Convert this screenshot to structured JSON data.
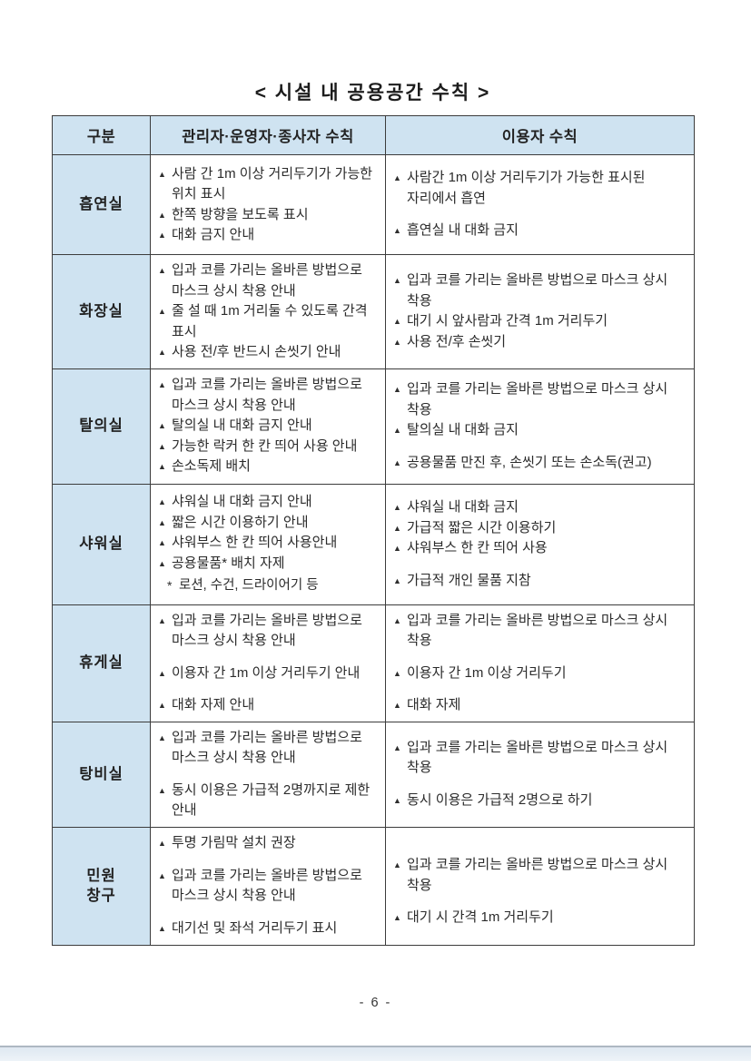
{
  "title": "< 시설 내 공용공간 수칙 >",
  "bullet_icon": "▲",
  "table": {
    "headers": [
      "구분",
      "관리자·운영자·종사자 수칙",
      "이용자 수칙"
    ],
    "rows": [
      {
        "category": "흡연실",
        "manager": [
          {
            "text": "사람 간 1m 이상 거리두기가 가능한 위치 표시"
          },
          {
            "text": "한쪽 방향을 보도록 표시"
          },
          {
            "text": "대화 금지 안내"
          }
        ],
        "user": [
          {
            "text": "사람간 1m 이상 거리두기가 가능한 표시된 자리에서 흡연"
          },
          {
            "text": "흡연실 내 대화 금지",
            "gap_before": true
          }
        ]
      },
      {
        "category": "화장실",
        "manager": [
          {
            "text": "입과 코를 가리는 올바른 방법으로 마스크 상시 착용 안내"
          },
          {
            "text": "줄 설 때 1m 거리둘 수 있도록 간격 표시"
          },
          {
            "text": "사용 전/후 반드시 손씻기 안내"
          }
        ],
        "user": [
          {
            "text": "입과 코를 가리는 올바른 방법으로 마스크 상시 착용"
          },
          {
            "text": "대기 시 앞사람과 간격 1m 거리두기"
          },
          {
            "text": "사용 전/후 손씻기"
          }
        ]
      },
      {
        "category": "탈의실",
        "manager": [
          {
            "text": "입과 코를 가리는 올바른 방법으로 마스크 상시 착용 안내"
          },
          {
            "text": "탈의실 내 대화 금지 안내"
          },
          {
            "text": "가능한 락커 한 칸 띄어 사용 안내"
          },
          {
            "text": "손소독제 배치"
          }
        ],
        "user": [
          {
            "text": "입과 코를 가리는 올바른 방법으로 마스크 상시 착용"
          },
          {
            "text": "탈의실 내 대화 금지"
          },
          {
            "text": "공용물품 만진 후, 손씻기 또는 손소독(권고)",
            "gap_before": true
          }
        ]
      },
      {
        "category": "샤워실",
        "manager": [
          {
            "text": "샤워실 내 대화 금지 안내"
          },
          {
            "text": "짧은 시간 이용하기 안내"
          },
          {
            "text": "샤워부스 한 칸 띄어 사용안내"
          },
          {
            "text": "공용물품* 배치 자제"
          },
          {
            "text": "로션, 수건, 드라이어기 등",
            "bullet": "*",
            "note": true
          }
        ],
        "user": [
          {
            "text": "샤워실 내 대화 금지"
          },
          {
            "text": "가급적 짧은 시간 이용하기"
          },
          {
            "text": "샤워부스 한 칸 띄어 사용"
          },
          {
            "text": "가급적 개인 물품 지참",
            "gap_before": true
          }
        ]
      },
      {
        "category": "휴게실",
        "manager": [
          {
            "text": "입과 코를 가리는 올바른 방법으로 마스크 상시 착용 안내"
          },
          {
            "text": "이용자 간 1m 이상 거리두기 안내",
            "gap_before": true
          },
          {
            "text": "대화 자제 안내",
            "gap_before": true
          }
        ],
        "user": [
          {
            "text": "입과 코를 가리는 올바른 방법으로 마스크 상시 착용"
          },
          {
            "text": "이용자 간 1m 이상 거리두기",
            "gap_before": true
          },
          {
            "text": "대화 자제",
            "gap_before": true
          }
        ]
      },
      {
        "category": "탕비실",
        "manager": [
          {
            "text": "입과 코를 가리는 올바른 방법으로 마스크 상시 착용 안내"
          },
          {
            "text": "동시 이용은 가급적 2명까지로 제한 안내",
            "gap_before": true
          }
        ],
        "user": [
          {
            "text": "입과 코를 가리는 올바른 방법으로 마스크 상시 착용"
          },
          {
            "text": "동시 이용은 가급적 2명으로 하기",
            "gap_before": true
          }
        ]
      },
      {
        "category": "민원\n창구",
        "manager": [
          {
            "text": "투명 가림막 설치 권장"
          },
          {
            "text": "입과 코를 가리는 올바른 방법으로 마스크 상시 착용 안내",
            "gap_before": true
          },
          {
            "text": "대기선 및 좌석 거리두기 표시",
            "gap_before": true
          }
        ],
        "user": [
          {
            "text": "입과 코를 가리는 올바른 방법으로 마스크 상시 착용",
            "gap_before": true
          },
          {
            "text": "대기 시 간격 1m 거리두기",
            "gap_before": true
          }
        ]
      }
    ]
  },
  "footer": {
    "page_number": "- 6 -"
  },
  "colors": {
    "header_bg": "#cfe3f1",
    "border": "#3c3c3c",
    "text": "#2b2b2b",
    "bottom_bar": "#dfe8f1"
  }
}
